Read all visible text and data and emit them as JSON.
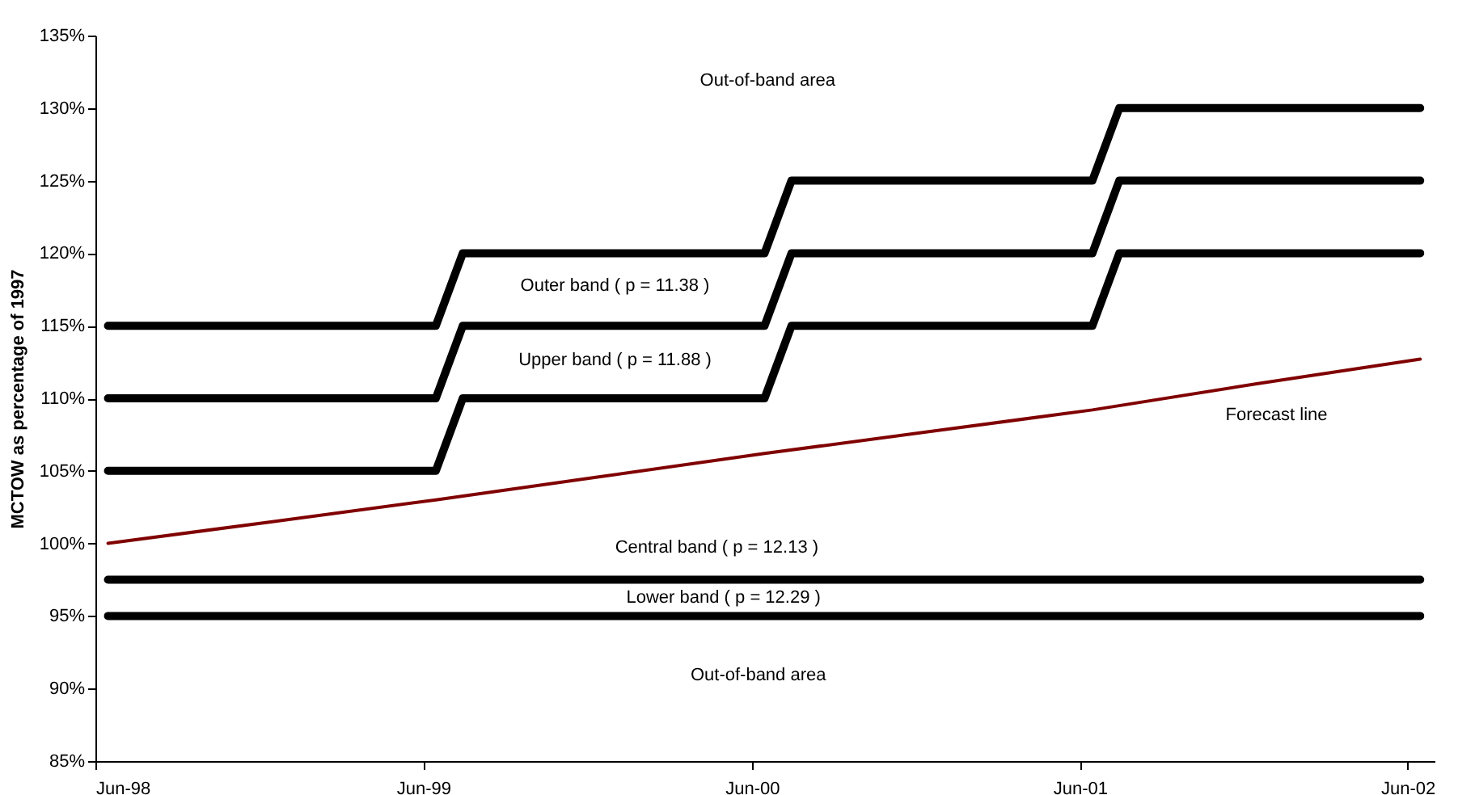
{
  "chart_data": {
    "type": "line",
    "ylabel": "MCTOW as percentage of 1997",
    "xlim": [
      "1998-06-01",
      "2002-07-01"
    ],
    "xticks": [
      {
        "value": "1998-06-01",
        "label": "Jun-98"
      },
      {
        "value": "1999-06-01",
        "label": "Jun-99"
      },
      {
        "value": "2000-06-01",
        "label": "Jun-00"
      },
      {
        "value": "2001-06-01",
        "label": "Jun-01"
      },
      {
        "value": "2002-06-01",
        "label": "Jun-02"
      }
    ],
    "ylim": [
      85,
      135
    ],
    "yticks": [
      {
        "value": 85,
        "label": "85%"
      },
      {
        "value": 90,
        "label": "90%"
      },
      {
        "value": 95,
        "label": "95%"
      },
      {
        "value": 100,
        "label": "100%"
      },
      {
        "value": 105,
        "label": "105%"
      },
      {
        "value": 110,
        "label": "110%"
      },
      {
        "value": 115,
        "label": "115%"
      },
      {
        "value": 120,
        "label": "120%"
      },
      {
        "value": 125,
        "label": "125%"
      },
      {
        "value": 130,
        "label": "130%"
      },
      {
        "value": 135,
        "label": "135%"
      }
    ],
    "grid": false,
    "series": [
      {
        "color": "#000000",
        "x": [
          "1998-06-15",
          "1999-06-15",
          "1999-07-15",
          "2000-06-15",
          "2000-07-15",
          "2001-06-15",
          "2001-07-15",
          "2002-06-15"
        ],
        "values": [
          115,
          115,
          120,
          120,
          125,
          125,
          130,
          130
        ]
      },
      {
        "color": "#000000",
        "x": [
          "1998-06-15",
          "1999-06-15",
          "1999-07-15",
          "2000-06-15",
          "2000-07-15",
          "2001-06-15",
          "2001-07-15",
          "2002-06-15"
        ],
        "values": [
          110,
          110,
          115,
          115,
          120,
          120,
          125,
          125
        ]
      },
      {
        "color": "#000000",
        "x": [
          "1998-06-15",
          "1999-06-15",
          "1999-07-15",
          "2000-06-15",
          "2000-07-15",
          "2001-06-15",
          "2001-07-15",
          "2002-06-15"
        ],
        "values": [
          105,
          105,
          110,
          110,
          115,
          115,
          120,
          120
        ]
      },
      {
        "color": "#000000",
        "x": [
          "1998-06-15",
          "2002-06-15"
        ],
        "values": [
          97.5,
          97.5
        ]
      },
      {
        "color": "#000000",
        "x": [
          "1998-06-15",
          "2002-06-15"
        ],
        "values": [
          95,
          95
        ]
      },
      {
        "color": "#800000",
        "x": [
          "1998-06-15",
          "1998-12-15",
          "1999-06-15",
          "1999-12-15",
          "2000-06-15",
          "2000-12-15",
          "2001-06-15",
          "2001-12-15",
          "2002-06-15"
        ],
        "values": [
          100,
          101.5,
          103.0,
          104.6,
          106.2,
          107.7,
          109.2,
          111.0,
          112.7
        ]
      }
    ],
    "annotations": [
      "Out-of-band area",
      "Outer band ( p = 11.38 )",
      "Upper band ( p = 11.88 )",
      "Central band ( p = 12.13 )",
      "Lower band ( p = 12.29 )",
      "Forecast line",
      "Out-of-band area"
    ]
  }
}
